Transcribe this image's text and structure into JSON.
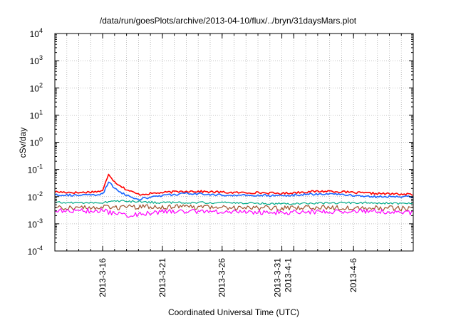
{
  "chart_data": {
    "type": "line",
    "title": "/data/run/goesPlots/archive/2013-04-10/flux/../bryn/31daysMars.plot",
    "xlabel": "Coordinated Universal Time (UTC)",
    "ylabel": "cSv/day",
    "yscale": "log",
    "ylim": [
      0.0001,
      10000
    ],
    "y_ticks": [
      {
        "base": "10",
        "exp": "-4"
      },
      {
        "base": "10",
        "exp": "-3"
      },
      {
        "base": "10",
        "exp": "-2"
      },
      {
        "base": "10",
        "exp": "-1"
      },
      {
        "base": "10",
        "exp": "0"
      },
      {
        "base": "10",
        "exp": "1"
      },
      {
        "base": "10",
        "exp": "2"
      },
      {
        "base": "10",
        "exp": "3"
      },
      {
        "base": "10",
        "exp": "4"
      }
    ],
    "xlim": [
      "2013-03-12",
      "2013-04-11"
    ],
    "x_ticks": [
      "2013-3-16",
      "2013-3-21",
      "2013-3-26",
      "2013-3-31",
      "2013-4-1",
      "2013-4-6"
    ],
    "grid": true,
    "legend": "none",
    "series": [
      {
        "color": "#ff0000",
        "x": [
          "2013-03-12",
          "2013-03-14",
          "2013-03-16",
          "2013-03-16.5",
          "2013-03-17",
          "2013-03-18",
          "2013-03-19",
          "2013-03-21",
          "2013-03-23",
          "2013-03-25",
          "2013-03-27",
          "2013-03-29",
          "2013-03-31",
          "2013-04-02",
          "2013-04-04",
          "2013-04-06",
          "2013-04-08",
          "2013-04-11"
        ],
        "values": [
          0.015,
          0.014,
          0.016,
          0.07,
          0.035,
          0.018,
          0.012,
          0.014,
          0.016,
          0.015,
          0.014,
          0.014,
          0.013,
          0.015,
          0.016,
          0.014,
          0.013,
          0.012
        ]
      },
      {
        "color": "#1a66ff",
        "x": [
          "2013-03-12",
          "2013-03-14",
          "2013-03-16",
          "2013-03-16.5",
          "2013-03-17",
          "2013-03-18",
          "2013-03-19",
          "2013-03-21",
          "2013-03-23",
          "2013-03-25",
          "2013-03-27",
          "2013-03-29",
          "2013-03-31",
          "2013-04-02",
          "2013-04-04",
          "2013-04-06",
          "2013-04-08",
          "2013-04-11"
        ],
        "values": [
          0.012,
          0.011,
          0.012,
          0.035,
          0.02,
          0.011,
          0.008,
          0.011,
          0.013,
          0.012,
          0.011,
          0.011,
          0.011,
          0.012,
          0.013,
          0.011,
          0.01,
          0.01
        ]
      },
      {
        "color": "#00aa88",
        "x": [
          "2013-03-12",
          "2013-03-16",
          "2013-03-17",
          "2013-03-21",
          "2013-03-26",
          "2013-03-31",
          "2013-04-06",
          "2013-04-11"
        ],
        "values": [
          0.006,
          0.006,
          0.007,
          0.006,
          0.006,
          0.0055,
          0.006,
          0.0055
        ]
      },
      {
        "color": "#a0522d",
        "x": [
          "2013-03-12",
          "2013-03-16",
          "2013-03-21",
          "2013-03-26",
          "2013-03-31",
          "2013-04-06",
          "2013-04-11"
        ],
        "values": [
          0.004,
          0.004,
          0.0042,
          0.004,
          0.0038,
          0.004,
          0.0036
        ]
      },
      {
        "color": "#ff00ff",
        "x": [
          "2013-03-12",
          "2013-03-16",
          "2013-03-18",
          "2013-03-21",
          "2013-03-26",
          "2013-03-31",
          "2013-04-06",
          "2013-04-11"
        ],
        "values": [
          0.003,
          0.003,
          0.002,
          0.0028,
          0.0028,
          0.0026,
          0.003,
          0.0025
        ]
      }
    ]
  }
}
